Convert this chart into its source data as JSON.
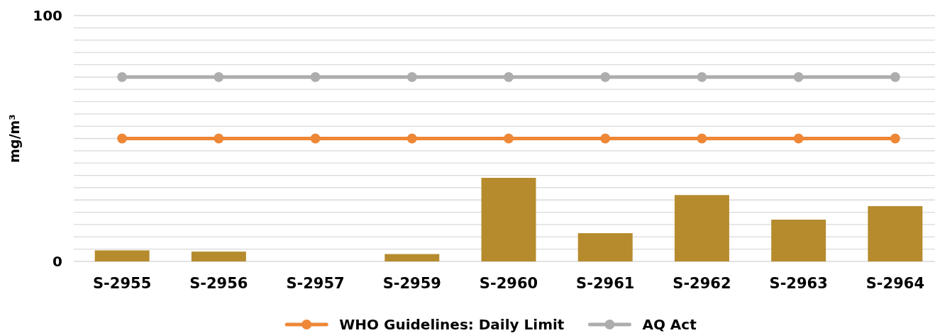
{
  "chart_data": {
    "type": "bar",
    "ylabel": "mg/m³",
    "categories": [
      "S-2955",
      "S-2956",
      "S-2957",
      "S-2959",
      "S-2960",
      "S-2961",
      "S-2962",
      "S-2963",
      "S-2964"
    ],
    "series": [
      {
        "color": "#b68b2e",
        "values": [
          4.5,
          4,
          0,
          3,
          34,
          11.5,
          27,
          17,
          22.5
        ]
      },
      {
        "type": "line",
        "name": "WHO Guidelines: Daily Limit",
        "color": "#ee8736",
        "values": [
          50,
          50,
          50,
          50,
          50,
          50,
          50,
          50,
          50
        ]
      },
      {
        "type": "line",
        "name": "AQ Act",
        "color": "#adadad",
        "values": [
          75,
          75,
          75,
          75,
          75,
          75,
          75,
          75,
          75
        ]
      }
    ],
    "ylim": [
      0,
      100
    ],
    "yticks": [
      0,
      {
        "value": 5,
        "label": null
      },
      {
        "value": 10,
        "label": null
      },
      {
        "value": 15,
        "label": null
      },
      {
        "value": 20,
        "label": null
      },
      {
        "value": 25,
        "label": null
      },
      {
        "value": 30,
        "label": null
      },
      {
        "value": 35,
        "label": null
      },
      {
        "value": 40,
        "label": null
      },
      {
        "value": 45,
        "label": null
      },
      {
        "value": 50,
        "label": null
      },
      {
        "value": 55,
        "label": null
      },
      {
        "value": 60,
        "label": null
      },
      {
        "value": 65,
        "label": null
      },
      {
        "value": 70,
        "label": null
      },
      {
        "value": 75,
        "label": null
      },
      {
        "value": 80,
        "label": null
      },
      {
        "value": 85,
        "label": null
      },
      {
        "value": 90,
        "label": null
      },
      {
        "value": 95,
        "label": null
      },
      100
    ],
    "grid": "y",
    "legend": "bottom",
    "marker": "circle"
  }
}
